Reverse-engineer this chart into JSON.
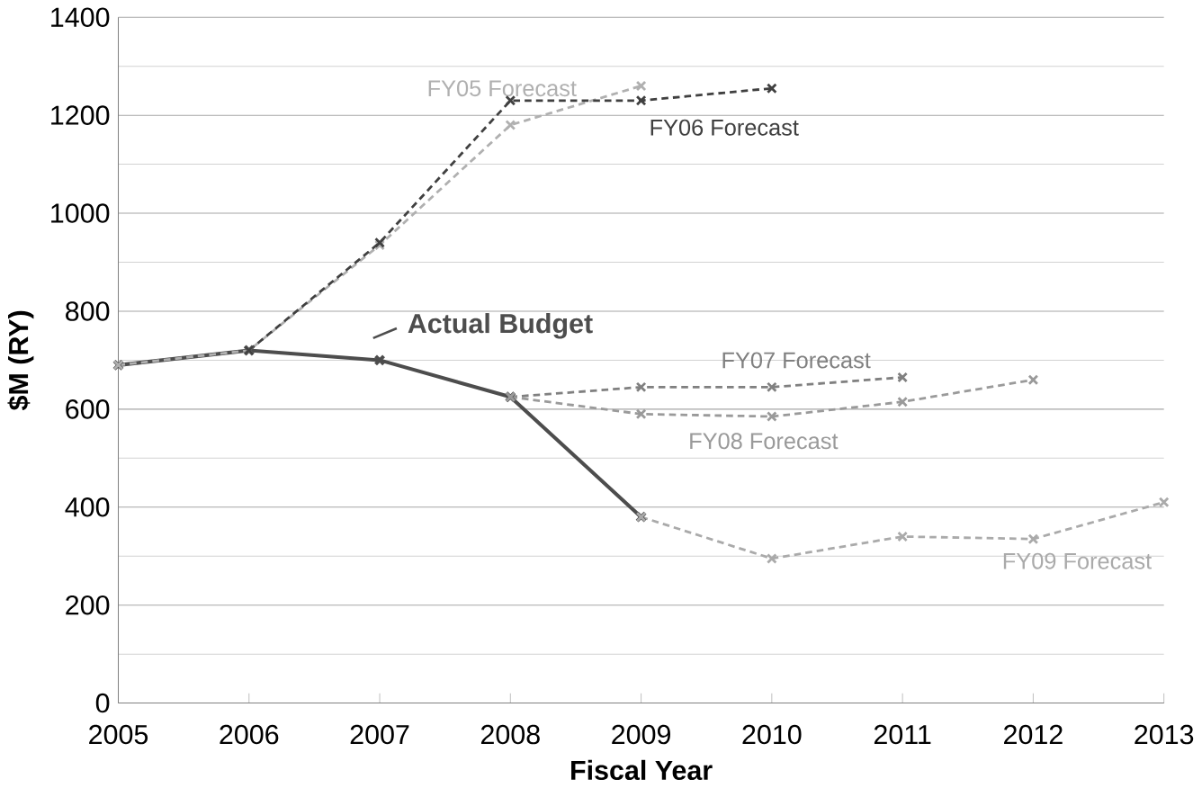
{
  "chart_data": {
    "type": "line",
    "xlabel": "Fiscal Year",
    "ylabel": "$M (RY)",
    "xlim": [
      2005,
      2013
    ],
    "xticks": [
      2005,
      2006,
      2007,
      2008,
      2009,
      2010,
      2011,
      2012,
      2013
    ],
    "ylim": [
      0,
      1400
    ],
    "yticks": [
      0,
      200,
      400,
      600,
      800,
      1000,
      1200,
      1400
    ],
    "grid": "y",
    "marker": "cross",
    "series": [
      {
        "name": "Actual Budget",
        "color": "#4d4d4d",
        "line_style": "solid",
        "x": [
          2005,
          2006,
          2007,
          2008,
          2009
        ],
        "values": [
          690,
          720,
          700,
          625,
          380
        ]
      },
      {
        "name": "FY05 Forecast",
        "color": "#b0b0b0",
        "line_style": "dashed",
        "x": [
          2005,
          2006,
          2007,
          2008,
          2009
        ],
        "values": [
          690,
          720,
          935,
          1180,
          1260
        ]
      },
      {
        "name": "FY06 Forecast",
        "color": "#404040",
        "line_style": "dashed",
        "x": [
          2006,
          2007,
          2008,
          2009,
          2010
        ],
        "values": [
          720,
          940,
          1230,
          1230,
          1255
        ]
      },
      {
        "name": "FY07 Forecast",
        "color": "#808080",
        "line_style": "dashed",
        "x": [
          2008,
          2009,
          2010,
          2011
        ],
        "values": [
          625,
          645,
          645,
          665
        ]
      },
      {
        "name": "FY08 Forecast",
        "color": "#9a9a9a",
        "line_style": "dashed",
        "x": [
          2008,
          2009,
          2010,
          2011,
          2012
        ],
        "values": [
          625,
          590,
          585,
          615,
          660
        ]
      },
      {
        "name": "FY09 Forecast",
        "color": "#aaaaaa",
        "line_style": "dashed",
        "x": [
          2009,
          2010,
          2011,
          2012,
          2013
        ],
        "values": [
          380,
          295,
          340,
          335,
          410
        ]
      }
    ]
  }
}
